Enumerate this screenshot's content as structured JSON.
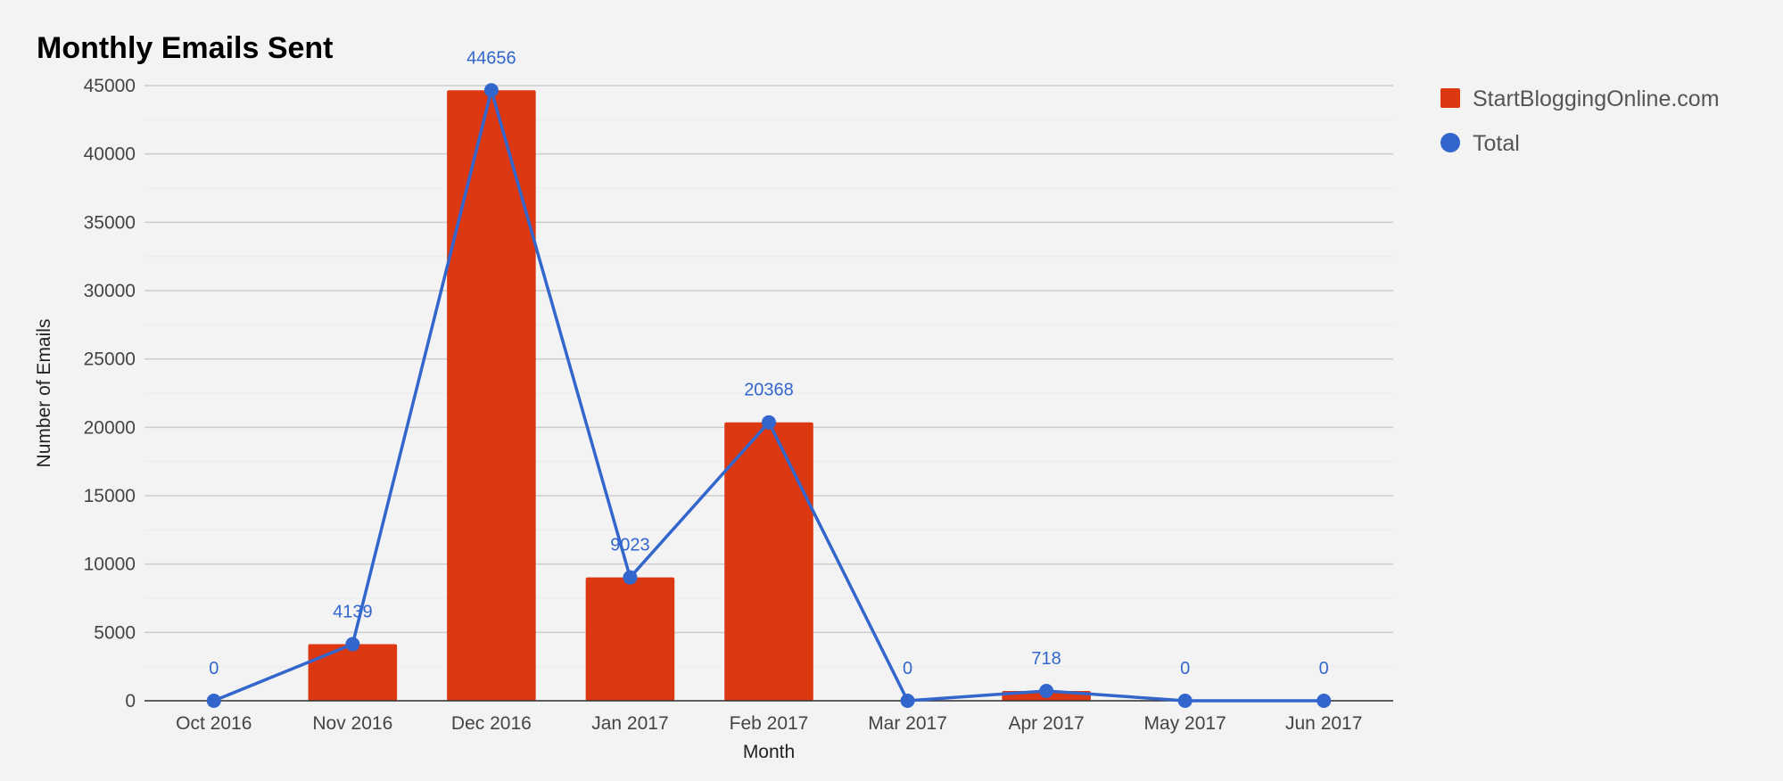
{
  "chart_data": {
    "type": "bar",
    "title": "Monthly Emails Sent",
    "xlabel": "Month",
    "ylabel": "Number of Emails",
    "ylim": [
      0,
      45000
    ],
    "yticks": [
      0,
      5000,
      10000,
      15000,
      20000,
      25000,
      30000,
      35000,
      40000,
      45000
    ],
    "categories": [
      "Oct 2016",
      "Nov 2016",
      "Dec 2016",
      "Jan 2017",
      "Feb 2017",
      "Mar 2017",
      "Apr 2017",
      "May 2017",
      "Jun 2017"
    ],
    "series": [
      {
        "name": "StartBloggingOnline.com",
        "type": "bar",
        "color": "#dc3912",
        "values": [
          0,
          4139,
          44656,
          9023,
          20368,
          0,
          718,
          0,
          0
        ]
      },
      {
        "name": "Total",
        "type": "line",
        "color": "#3366cc",
        "values": [
          0,
          4139,
          44656,
          9023,
          20368,
          0,
          718,
          0,
          0
        ],
        "data_labels": [
          "0",
          "4139",
          "44656",
          "9023",
          "20368",
          "0",
          "718",
          "0",
          "0"
        ]
      }
    ],
    "grid": true,
    "legend_position": "right"
  }
}
